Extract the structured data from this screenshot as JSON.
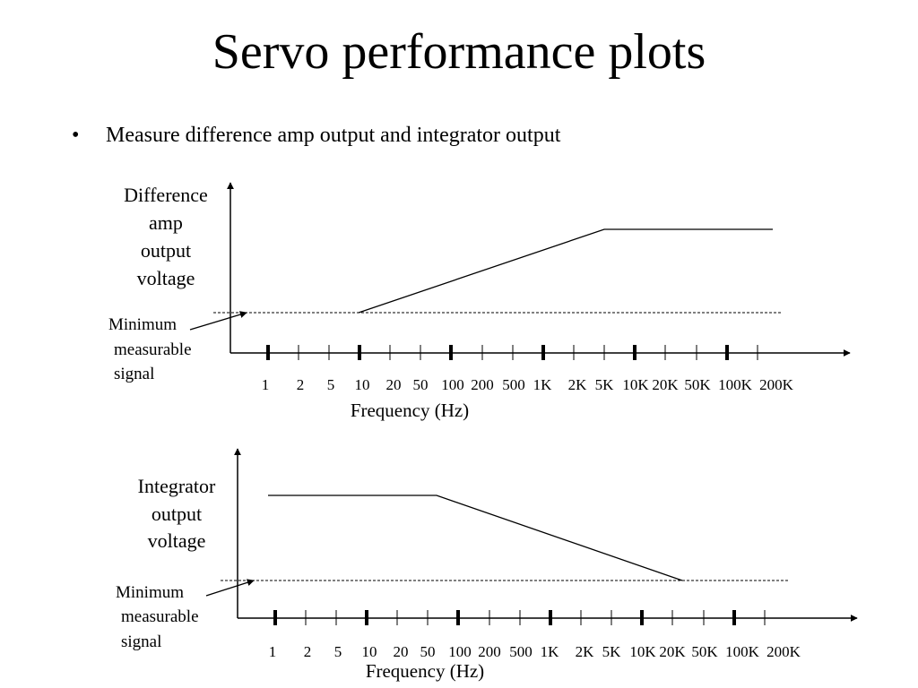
{
  "slide": {
    "title": "Servo performance plots",
    "bullet_char": "•",
    "bullet_text": "Measure difference amp output and integrator output"
  },
  "plots": [
    {
      "id": "difference-amp",
      "ylabel_lines": [
        "Difference",
        "amp",
        "output",
        "voltage"
      ],
      "min_label_lines": [
        "Minimum",
        "measurable",
        "signal"
      ],
      "xlabel": "Frequency (Hz)",
      "tick_labels": [
        "1",
        "2",
        "5",
        "10",
        "20",
        "50",
        "100",
        "200",
        "500",
        "1K",
        "2K",
        "5K",
        "10K",
        "20K",
        "50K",
        "100K",
        "200K"
      ],
      "decade_ticks": [
        "1",
        "10",
        "100",
        "1K",
        "10K",
        "100K"
      ],
      "curve": [
        {
          "freq_hz": 10,
          "level": "minimum measurable signal"
        },
        {
          "freq_hz": 5000,
          "level": "plateau"
        },
        {
          "freq_hz": 200000,
          "level": "plateau"
        }
      ]
    },
    {
      "id": "integrator",
      "ylabel_lines": [
        "Integrator",
        "output",
        "voltage"
      ],
      "min_label_lines": [
        "Minimum",
        "measurable",
        "signal"
      ],
      "xlabel": "Frequency (Hz)",
      "tick_labels": [
        "1",
        "2",
        "5",
        "10",
        "20",
        "50",
        "100",
        "200",
        "500",
        "1K",
        "2K",
        "5K",
        "10K",
        "20K",
        "50K",
        "100K",
        "200K"
      ],
      "decade_ticks": [
        "1",
        "10",
        "100",
        "1K",
        "10K",
        "100K"
      ],
      "curve": [
        {
          "freq_hz": 1,
          "level": "plateau"
        },
        {
          "freq_hz": 50,
          "level": "plateau"
        },
        {
          "freq_hz": 20000,
          "level": "minimum measurable signal"
        }
      ]
    }
  ]
}
